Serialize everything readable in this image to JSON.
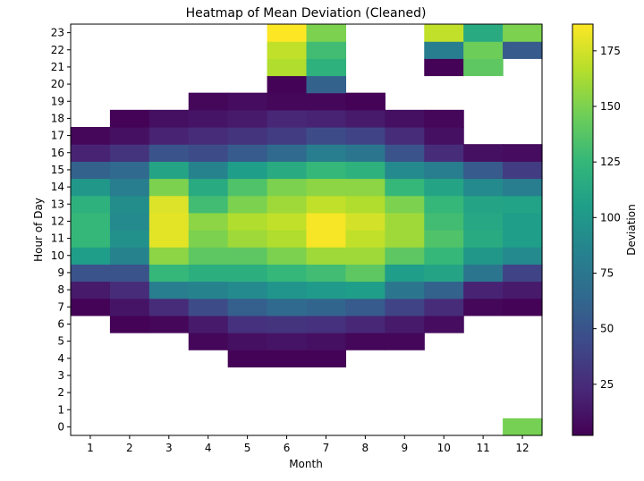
{
  "chart_data": {
    "type": "heatmap",
    "title": "Heatmap of Mean Deviation (Cleaned)",
    "xlabel": "Month",
    "ylabel": "Hour of Day",
    "colorbar_label": "Deviation",
    "x_categories": [
      "1",
      "2",
      "3",
      "4",
      "5",
      "6",
      "7",
      "8",
      "9",
      "10",
      "11",
      "12"
    ],
    "y_categories": [
      "0",
      "1",
      "2",
      "3",
      "4",
      "5",
      "6",
      "7",
      "8",
      "9",
      "10",
      "11",
      "12",
      "13",
      "14",
      "15",
      "16",
      "17",
      "18",
      "19",
      "20",
      "21",
      "22",
      "23"
    ],
    "colorbar_ticks": [
      "25",
      "50",
      "75",
      "100",
      "125",
      "150",
      "175"
    ],
    "colorbar_tick_values": [
      25,
      50,
      75,
      100,
      125,
      150,
      175
    ],
    "color_range": [
      2,
      187
    ],
    "grid": false,
    "colormap": "viridis",
    "viridis_stops": [
      "#440154",
      "#482878",
      "#3e4989",
      "#31688e",
      "#26828e",
      "#1f9e89",
      "#35b779",
      "#6ece58",
      "#b5de2b",
      "#fde725"
    ],
    "values": [
      [
        null,
        null,
        null,
        null,
        null,
        null,
        null,
        null,
        null,
        null,
        null,
        148
      ],
      [
        null,
        null,
        null,
        null,
        null,
        null,
        null,
        null,
        null,
        null,
        null,
        null
      ],
      [
        null,
        null,
        null,
        null,
        null,
        null,
        null,
        null,
        null,
        null,
        null,
        null
      ],
      [
        null,
        null,
        null,
        null,
        null,
        null,
        null,
        null,
        null,
        null,
        null,
        null
      ],
      [
        null,
        null,
        null,
        null,
        3,
        3,
        3,
        null,
        null,
        null,
        null,
        null
      ],
      [
        null,
        null,
        null,
        5,
        10,
        12,
        10,
        5,
        5,
        null,
        null,
        null
      ],
      [
        null,
        3,
        5,
        15,
        28,
        30,
        28,
        22,
        15,
        8,
        null,
        null
      ],
      [
        3,
        12,
        25,
        45,
        58,
        65,
        62,
        55,
        40,
        25,
        5,
        3
      ],
      [
        15,
        25,
        80,
        85,
        90,
        98,
        102,
        105,
        75,
        60,
        20,
        15
      ],
      [
        50,
        50,
        125,
        118,
        118,
        125,
        130,
        140,
        105,
        110,
        75,
        40
      ],
      [
        105,
        85,
        155,
        140,
        140,
        150,
        160,
        160,
        140,
        125,
        100,
        90
      ],
      [
        125,
        95,
        180,
        150,
        160,
        165,
        185,
        170,
        160,
        135,
        115,
        105
      ],
      [
        125,
        90,
        180,
        155,
        165,
        170,
        185,
        175,
        160,
        130,
        112,
        105
      ],
      [
        120,
        92,
        178,
        130,
        150,
        160,
        170,
        165,
        150,
        125,
        110,
        108
      ],
      [
        100,
        80,
        150,
        115,
        135,
        150,
        155,
        155,
        125,
        110,
        90,
        80
      ],
      [
        60,
        65,
        110,
        85,
        105,
        115,
        125,
        120,
        90,
        80,
        55,
        35
      ],
      [
        20,
        30,
        50,
        45,
        55,
        65,
        80,
        75,
        50,
        25,
        10,
        8
      ],
      [
        5,
        10,
        20,
        25,
        30,
        35,
        45,
        40,
        25,
        10,
        null,
        null
      ],
      [
        null,
        3,
        10,
        12,
        15,
        22,
        20,
        15,
        10,
        5,
        null,
        null
      ],
      [
        null,
        null,
        null,
        5,
        8,
        5,
        5,
        3,
        null,
        null,
        null,
        null
      ],
      [
        null,
        null,
        null,
        null,
        null,
        3,
        60,
        null,
        null,
        null,
        null,
        null
      ],
      [
        null,
        null,
        null,
        null,
        null,
        165,
        120,
        null,
        null,
        3,
        140,
        null
      ],
      [
        null,
        null,
        null,
        null,
        null,
        170,
        130,
        null,
        null,
        80,
        145,
        55
      ],
      [
        null,
        null,
        null,
        null,
        null,
        187,
        150,
        null,
        null,
        170,
        115,
        150
      ]
    ]
  }
}
